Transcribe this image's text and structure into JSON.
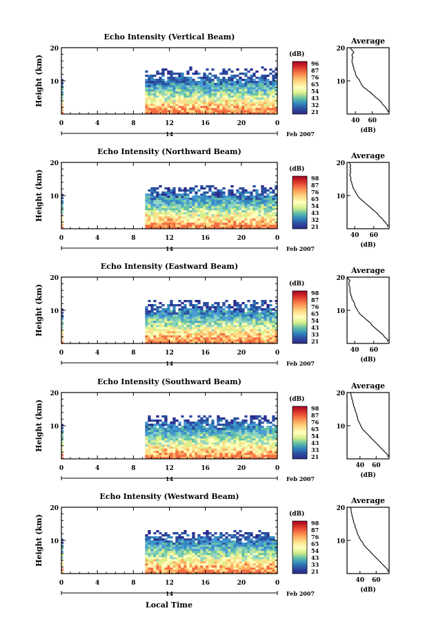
{
  "figure": {
    "bottom_label": "Local Time",
    "panels": [
      {
        "title": "Echo Intensity (Vertical Beam)",
        "cb_ticks": [
          "96",
          "87",
          "76",
          "65",
          "54",
          "43",
          "32",
          "21"
        ],
        "avg_xticks": [
          "40",
          "60"
        ],
        "avg_xrange": [
          30,
          80
        ]
      },
      {
        "title": "Echo Intensity (Northward Beam)",
        "cb_ticks": [
          "98",
          "87",
          "76",
          "65",
          "54",
          "43",
          "32",
          "21"
        ],
        "avg_xticks": [
          "40",
          "60"
        ],
        "avg_xrange": [
          32,
          76
        ]
      },
      {
        "title": "Echo Intensity (Eastward Beam)",
        "cb_ticks": [
          "98",
          "87",
          "76",
          "65",
          "54",
          "43",
          "33",
          "21"
        ],
        "avg_xticks": [
          "40",
          "60"
        ],
        "avg_xrange": [
          32,
          76
        ]
      },
      {
        "title": "Echo Intensity (Southward Beam)",
        "cb_ticks": [
          "98",
          "87",
          "76",
          "65",
          "54",
          "43",
          "33",
          "21"
        ],
        "avg_xticks": [
          "40",
          "60"
        ],
        "avg_xrange": [
          24,
          76
        ]
      },
      {
        "title": "Echo Intensity (Westward Beam)",
        "cb_ticks": [
          "98",
          "87",
          "76",
          "65",
          "54",
          "43",
          "33",
          "21"
        ],
        "avg_xticks": [
          "40",
          "60"
        ],
        "avg_xrange": [
          24,
          76
        ]
      }
    ]
  },
  "chart_data": {
    "type": "heatmap",
    "ylabel": "Height (km)",
    "yticks": [
      "20",
      "10"
    ],
    "ylim": [
      0,
      20
    ],
    "xticks": [
      "0",
      "4",
      "8",
      "12",
      "16",
      "20",
      "0"
    ],
    "xlim": [
      0,
      24
    ],
    "date_label": "14",
    "date_suffix": "Feb 2007",
    "colorbar_label": "(dB)",
    "colorbar_colors": [
      "#a50026",
      "#d73027",
      "#f46d43",
      "#fdae61",
      "#fee08b",
      "#ffffbf",
      "#d9ef8b",
      "#66c2a5",
      "#3288bd",
      "#2c4ea0",
      "#2b2a8c"
    ],
    "data_start_hour": 9.3,
    "profile_title": "Average",
    "profile_xlabel": "(dB)",
    "profile_yticks": [
      "20",
      "10"
    ],
    "profile_heights": [
      0.5,
      1,
      1.5,
      2,
      2.5,
      3,
      3.5,
      4,
      4.5,
      5,
      5.5,
      6,
      6.5,
      7,
      7.5,
      8,
      8.5,
      9,
      9.5,
      10,
      10.5,
      11,
      11.5,
      12,
      12.5,
      13,
      13.5,
      14,
      14.5,
      15,
      15.5,
      16,
      16.5,
      17,
      17.5,
      18,
      18.5,
      19,
      19.5,
      20
    ],
    "profiles": [
      [
        78,
        79,
        77,
        76,
        74,
        72,
        71,
        69,
        67,
        64,
        62,
        60,
        58,
        55,
        53,
        50,
        48,
        47,
        46,
        45,
        44,
        42,
        41,
        40,
        40,
        39,
        38,
        38,
        37,
        37,
        36,
        36,
        36,
        37,
        36,
        36,
        38,
        37,
        35,
        34
      ],
      [
        74,
        75,
        73,
        72,
        70,
        69,
        67,
        65,
        64,
        62,
        60,
        58,
        56,
        54,
        52,
        50,
        48,
        46,
        44,
        43,
        42,
        41,
        40,
        39,
        38,
        38,
        37,
        37,
        36,
        36,
        36,
        35,
        35,
        36,
        35,
        36,
        35,
        36,
        35,
        35
      ],
      [
        74,
        75,
        73,
        71,
        70,
        68,
        66,
        64,
        62,
        60,
        58,
        57,
        55,
        53,
        51,
        49,
        47,
        45,
        44,
        43,
        42,
        41,
        40,
        40,
        39,
        38,
        37,
        37,
        36,
        36,
        35,
        35,
        35,
        35,
        34,
        34,
        34,
        35,
        33,
        33
      ],
      [
        74,
        75,
        73,
        71,
        69,
        67,
        65,
        63,
        61,
        59,
        57,
        55,
        53,
        51,
        49,
        47,
        45,
        43,
        42,
        41,
        40,
        39,
        38,
        37,
        37,
        36,
        36,
        35,
        34,
        34,
        33,
        32,
        32,
        31,
        31,
        30,
        30,
        29,
        29,
        28
      ],
      [
        74,
        75,
        73,
        71,
        69,
        67,
        65,
        63,
        61,
        59,
        57,
        55,
        53,
        51,
        49,
        47,
        45,
        44,
        43,
        41,
        40,
        39,
        38,
        37,
        36,
        36,
        35,
        34,
        34,
        33,
        32,
        32,
        31,
        31,
        30,
        30,
        29,
        29,
        29,
        28
      ]
    ]
  }
}
